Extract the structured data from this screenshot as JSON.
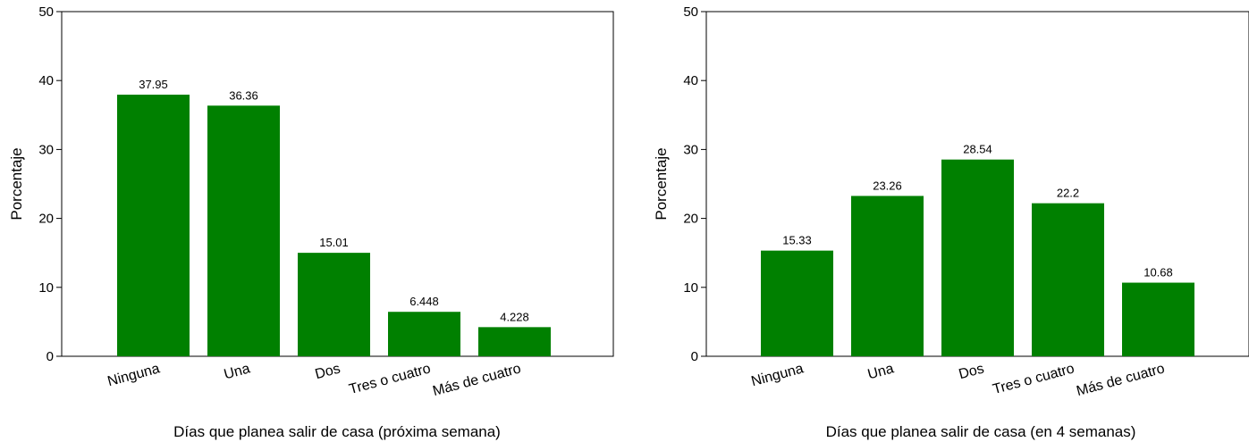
{
  "bar_color": "#008000",
  "chart_data": [
    {
      "type": "bar",
      "categories": [
        "Ninguna",
        "Una",
        "Dos",
        "Tres o cuatro",
        "Más de cuatro"
      ],
      "values": [
        37.95,
        36.36,
        15.01,
        6.448,
        4.228
      ],
      "value_labels": [
        "37.95",
        "36.36",
        "15.01",
        "6.448",
        "4.228"
      ],
      "xlabel": "Días que planea salir de casa (próxima semana)",
      "ylabel": "Porcentaje",
      "ylim": [
        0,
        50
      ],
      "yticks": [
        "0",
        "10",
        "20",
        "30",
        "40",
        "50"
      ],
      "grid": false
    },
    {
      "type": "bar",
      "categories": [
        "Ninguna",
        "Una",
        "Dos",
        "Tres o cuatro",
        "Más de cuatro"
      ],
      "values": [
        15.33,
        23.26,
        28.54,
        22.2,
        10.68
      ],
      "value_labels": [
        "15.33",
        "23.26",
        "28.54",
        "22.2",
        "10.68"
      ],
      "xlabel": "Días que planea salir de casa (en 4 semanas)",
      "ylabel": "Porcentaje",
      "ylim": [
        0,
        50
      ],
      "yticks": [
        "0",
        "10",
        "20",
        "30",
        "40",
        "50"
      ],
      "grid": false
    }
  ]
}
